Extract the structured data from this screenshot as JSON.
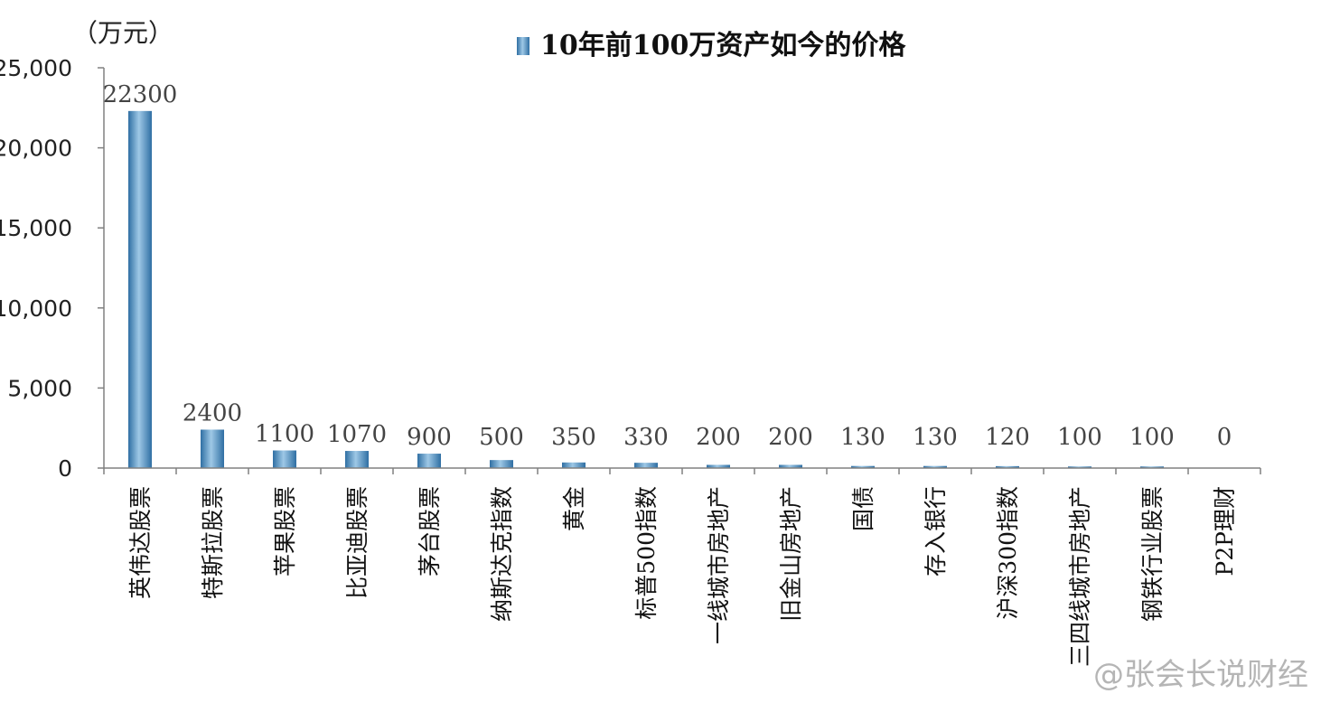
{
  "watermark": "@张会长说财经",
  "chart_data": {
    "type": "bar",
    "title": "10年前100万资产如今的价格",
    "unit_label": "（万元）",
    "legend": {
      "entry": "10年前100万资产如今的价格",
      "position": "top"
    },
    "categories": [
      "英伟达股票",
      "特斯拉股票",
      "苹果股票",
      "比亚迪股票",
      "茅台股票",
      "纳斯达克指数",
      "黄金",
      "标普500指数",
      "一线城市房地产",
      "旧金山房地产",
      "国债",
      "存入银行",
      "沪深300指数",
      "三四线城市房地产",
      "钢铁行业股票",
      "P2P理财"
    ],
    "series": [
      {
        "values": [
          22300,
          2400,
          1100,
          1070,
          900,
          500,
          350,
          330,
          200,
          200,
          130,
          130,
          120,
          100,
          100,
          0
        ]
      }
    ],
    "data_labels": [
      "22300",
      "2400",
      "1100",
      "1070",
      "900",
      "500",
      "350",
      "330",
      "200",
      "200",
      "130",
      "130",
      "120",
      "100",
      "100",
      "0"
    ],
    "y_ticks": [
      "0",
      "5,000",
      "10,000",
      "15,000",
      "20,000",
      "25,000"
    ],
    "ylim": [
      0,
      25000
    ],
    "grid": false,
    "colors": {
      "bar_dark": "#2f6fa3",
      "bar_light": "#9ec8e6",
      "axis": "#808080",
      "legend_dark": "#3b78ad",
      "legend_light": "#a9d0ec"
    }
  }
}
